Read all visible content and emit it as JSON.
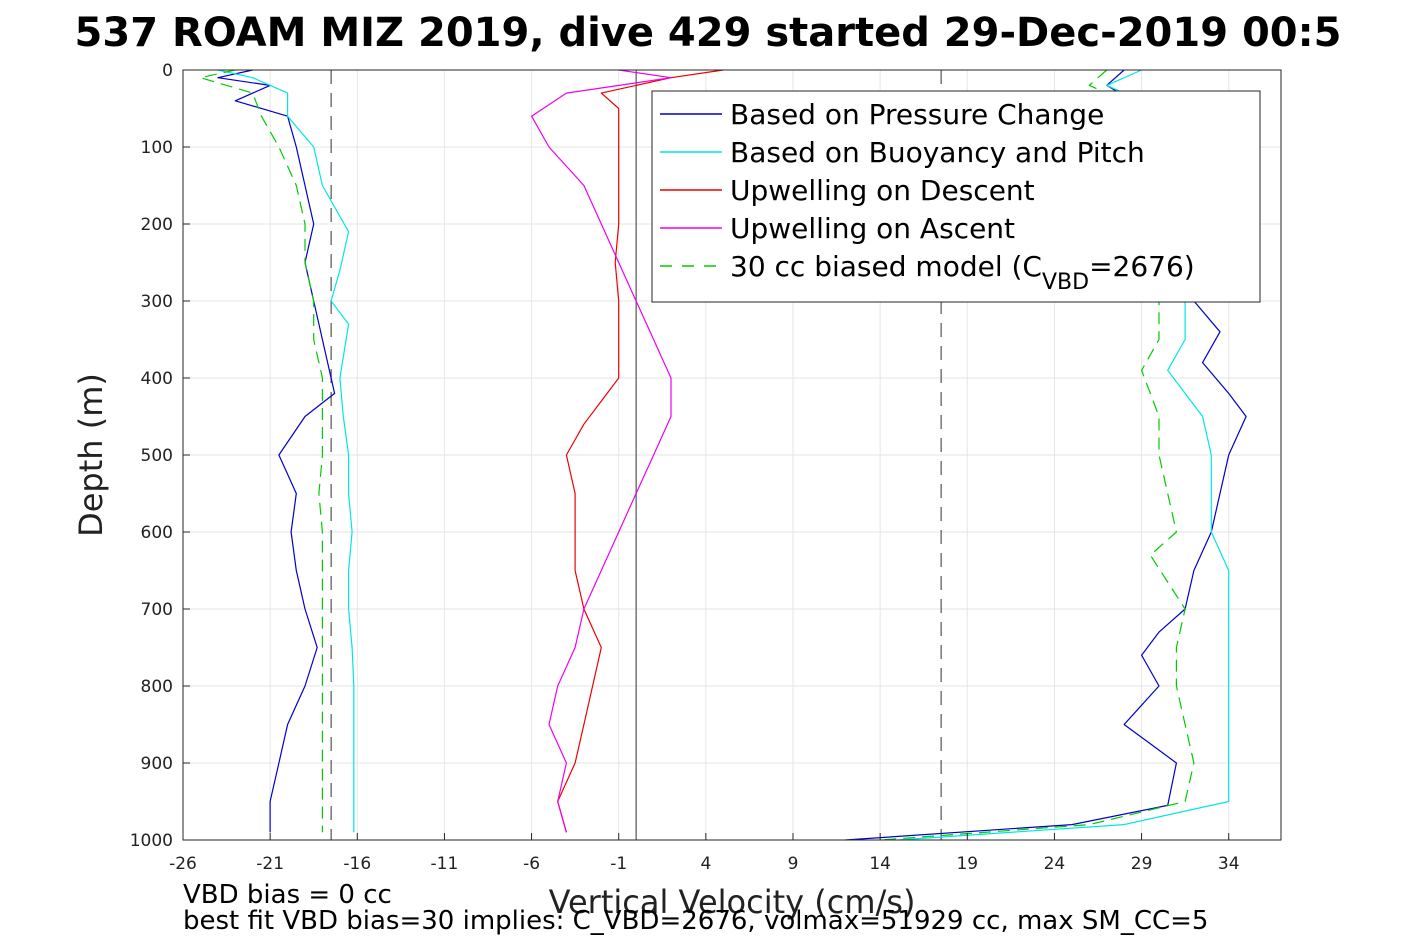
{
  "chart_data": {
    "type": "line",
    "title": "537 ROAM MIZ 2019, dive 429 started 29-Dec-2019 00:5",
    "xlabel": "Vertical Velocity (cm/s)",
    "ylabel": "Depth (m)",
    "xlim": [
      -26,
      37
    ],
    "ylim": [
      1000,
      0
    ],
    "y_reversed": true,
    "grid": true,
    "xticks": [
      -26,
      -21,
      -16,
      -11,
      -6,
      -1,
      4,
      9,
      14,
      19,
      24,
      29,
      34
    ],
    "yticks": [
      0,
      100,
      200,
      300,
      400,
      500,
      600,
      700,
      800,
      900,
      1000
    ],
    "reference_lines": {
      "solid_vertical_x": 0,
      "dashed_vertical_x": [
        -17.5,
        17.5
      ],
      "color": "#555555"
    },
    "legend": {
      "placement": "top-right",
      "entries": [
        {
          "label": "Based on Pressure Change",
          "color": "#0000cc",
          "style": "solid"
        },
        {
          "label": "Based on Buoyancy and Pitch",
          "color": "#00e5e5",
          "style": "solid"
        },
        {
          "label": "Upwelling on Descent",
          "color": "#ee0000",
          "style": "solid"
        },
        {
          "label": "Upwelling on Ascent",
          "color": "#ee00ee",
          "style": "solid"
        },
        {
          "label_prefix": "30 cc biased model (C",
          "label_sub": "VBD",
          "label_suffix": "=2676)",
          "color": "#00cc00",
          "style": "dashed"
        }
      ]
    },
    "series": [
      {
        "name": "Based on Pressure Change",
        "color": "#0000cc",
        "style": "solid",
        "segments": [
          {
            "depth": [
              0,
              10,
              20,
              40,
              60,
              100,
              150,
              200,
              250,
              300,
              350,
              400,
              420,
              450,
              500,
              550,
              600,
              650,
              700,
              750,
              800,
              850,
              900,
              950,
              990
            ],
            "velocity": [
              -22,
              -24,
              -21,
              -23,
              -20,
              -19.5,
              -19,
              -18.5,
              -19,
              -18.5,
              -18,
              -17.5,
              -17.3,
              -19,
              -20.5,
              -19.5,
              -19.8,
              -19.5,
              -19,
              -18.3,
              -19,
              -20,
              -20.5,
              -21,
              -21
            ]
          },
          {
            "depth": [
              0,
              20,
              60,
              100,
              150,
              200,
              250,
              300,
              340,
              380,
              420,
              450,
              500,
              550,
              600,
              650,
              700,
              730,
              760,
              800,
              850,
              900,
              955,
              980,
              1000
            ],
            "velocity": [
              28,
              27,
              30,
              32,
              31,
              32,
              31.5,
              32,
              33.5,
              32.5,
              34,
              35,
              34,
              33.5,
              33,
              32,
              31.5,
              30,
              29,
              30,
              28,
              31,
              30.5,
              25,
              12
            ]
          }
        ]
      },
      {
        "name": "Based on Buoyancy and Pitch",
        "color": "#00e5e5",
        "style": "solid",
        "segments": [
          {
            "depth": [
              0,
              10,
              30,
              60,
              100,
              150,
              210,
              260,
              300,
              330,
              400,
              450,
              500,
              550,
              600,
              650,
              700,
              750,
              800,
              850,
              900,
              950,
              990
            ],
            "velocity": [
              -24,
              -22,
              -20,
              -20,
              -18.5,
              -18,
              -16.5,
              -17,
              -17.5,
              -16.5,
              -17,
              -16.8,
              -16.5,
              -16.5,
              -16.3,
              -16.5,
              -16.5,
              -16.3,
              -16.2,
              -16.2,
              -16.2,
              -16.2,
              -16.2
            ]
          },
          {
            "depth": [
              0,
              20,
              60,
              100,
              150,
              200,
              250,
              300,
              350,
              390,
              450,
              500,
              550,
              600,
              650,
              700,
              750,
              800,
              850,
              900,
              950,
              980,
              1000
            ],
            "velocity": [
              29,
              27,
              31,
              32,
              31.5,
              32,
              31.5,
              31.5,
              31.5,
              30.5,
              32.5,
              33,
              33,
              33,
              34,
              34,
              34,
              34,
              34,
              34,
              34,
              28,
              15
            ]
          }
        ]
      },
      {
        "name": "Upwelling on Descent",
        "color": "#ee0000",
        "style": "solid",
        "segments": [
          {
            "depth": [
              0,
              10,
              30,
              50,
              100,
              150,
              200,
              250,
              300,
              350,
              400,
              430,
              460,
              500,
              550,
              600,
              650,
              700,
              750,
              800,
              850,
              900,
              950,
              990
            ],
            "velocity": [
              5,
              2,
              -2,
              -1,
              -1,
              -1,
              -1,
              -1.2,
              -1,
              -1,
              -1,
              -2,
              -3,
              -4,
              -3.5,
              -3.5,
              -3.5,
              -3,
              -2,
              -2.5,
              -3,
              -3.5,
              -4.5,
              -4
            ]
          }
        ]
      },
      {
        "name": "Upwelling on Ascent",
        "color": "#ee00ee",
        "style": "solid",
        "segments": [
          {
            "depth": [
              0,
              10,
              30,
              60,
              100,
              150,
              200,
              250,
              300,
              350,
              400,
              450,
              500,
              550,
              600,
              650,
              700,
              750,
              800,
              850,
              900,
              950,
              990
            ],
            "velocity": [
              -1,
              2,
              -4,
              -6,
              -5,
              -3,
              -2,
              -1,
              0,
              1,
              2,
              2,
              1,
              0,
              -1,
              -2,
              -3,
              -3.5,
              -4.5,
              -5,
              -4,
              -4.5,
              -4
            ]
          }
        ]
      },
      {
        "name": "30 cc biased model (C_VBD=2676)",
        "color": "#00cc00",
        "style": "dashed",
        "segments": [
          {
            "depth": [
              0,
              10,
              30,
              60,
              100,
              150,
              200,
              250,
              300,
              350,
              400,
              450,
              500,
              550,
              600,
              650,
              700,
              750,
              800,
              850,
              900,
              950,
              990
            ],
            "velocity": [
              -23,
              -25,
              -22,
              -21.5,
              -20.5,
              -19.5,
              -19,
              -19,
              -18.5,
              -18.5,
              -18,
              -18,
              -18,
              -18.2,
              -18,
              -18,
              -18,
              -18,
              -18,
              -18,
              -18,
              -18,
              -18
            ]
          },
          {
            "depth": [
              0,
              20,
              60,
              100,
              150,
              200,
              250,
              300,
              350,
              390,
              450,
              500,
              550,
              600,
              630,
              700,
              750,
              800,
              850,
              900,
              950,
              980,
              1000
            ],
            "velocity": [
              27,
              26,
              30,
              31,
              30.5,
              31,
              30.5,
              30,
              30,
              29,
              30,
              30,
              30.5,
              31,
              29.5,
              31.5,
              31,
              31,
              31.5,
              32,
              31.5,
              26,
              14
            ]
          }
        ]
      }
    ]
  },
  "notes": {
    "line1": "VBD bias = 0 cc",
    "line2": "best fit VBD bias=30 implies: C_VBD=2676, volmax=51929 cc, max SM_CC=5"
  }
}
